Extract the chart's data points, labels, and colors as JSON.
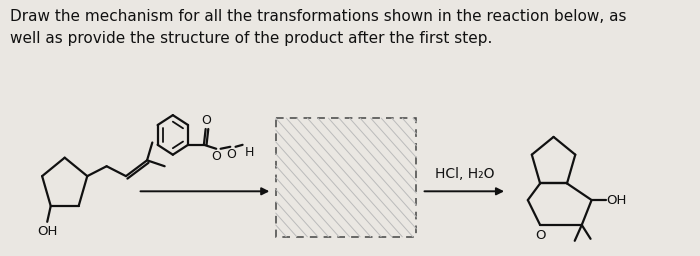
{
  "title_line1": "Draw the mechanism for all the transformations shown in the reaction below, as",
  "title_line2": "well as provide the structure of the product after the first step.",
  "background_color": "#eae7e2",
  "text_color": "#111111",
  "arrow2_label": "HCl, H₂O",
  "title_fontsize": 11.0,
  "label_fontsize": 10.0,
  "fig_width": 7.0,
  "fig_height": 2.56,
  "dpi": 100
}
